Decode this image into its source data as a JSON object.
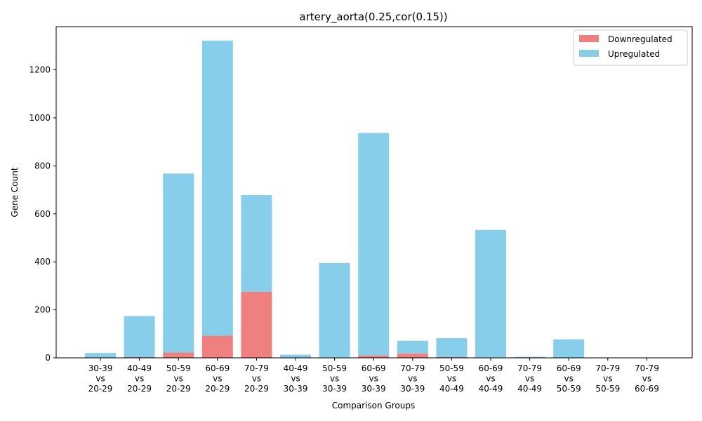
{
  "chart_data": {
    "type": "bar",
    "stacked": true,
    "title": "artery_aorta(0.25,cor(0.15))",
    "xlabel": "Comparison Groups",
    "ylabel": "Gene Count",
    "ylim": [
      0,
      1380
    ],
    "yticks": [
      0,
      200,
      400,
      600,
      800,
      1000,
      1200
    ],
    "legend_position": "top-right",
    "categories": [
      [
        "30-39",
        "vs",
        "20-29"
      ],
      [
        "40-49",
        "vs",
        "20-29"
      ],
      [
        "50-59",
        "vs",
        "20-29"
      ],
      [
        "60-69",
        "vs",
        "20-29"
      ],
      [
        "70-79",
        "vs",
        "20-29"
      ],
      [
        "40-49",
        "vs",
        "30-39"
      ],
      [
        "50-59",
        "vs",
        "30-39"
      ],
      [
        "60-69",
        "vs",
        "30-39"
      ],
      [
        "70-79",
        "vs",
        "30-39"
      ],
      [
        "50-59",
        "vs",
        "40-49"
      ],
      [
        "60-69",
        "vs",
        "40-49"
      ],
      [
        "70-79",
        "vs",
        "40-49"
      ],
      [
        "60-69",
        "vs",
        "50-59"
      ],
      [
        "70-79",
        "vs",
        "50-59"
      ],
      [
        "70-79",
        "vs",
        "60-69"
      ]
    ],
    "series": [
      {
        "name": "Downregulated",
        "color": "#f08080",
        "values": [
          1,
          3,
          22,
          92,
          275,
          1,
          2,
          10,
          18,
          3,
          2,
          0,
          1,
          0,
          0
        ]
      },
      {
        "name": "Upregulated",
        "color": "#87ceeb",
        "values": [
          19,
          171,
          746,
          1230,
          403,
          12,
          393,
          927,
          53,
          79,
          531,
          4,
          76,
          1,
          1
        ]
      }
    ]
  }
}
